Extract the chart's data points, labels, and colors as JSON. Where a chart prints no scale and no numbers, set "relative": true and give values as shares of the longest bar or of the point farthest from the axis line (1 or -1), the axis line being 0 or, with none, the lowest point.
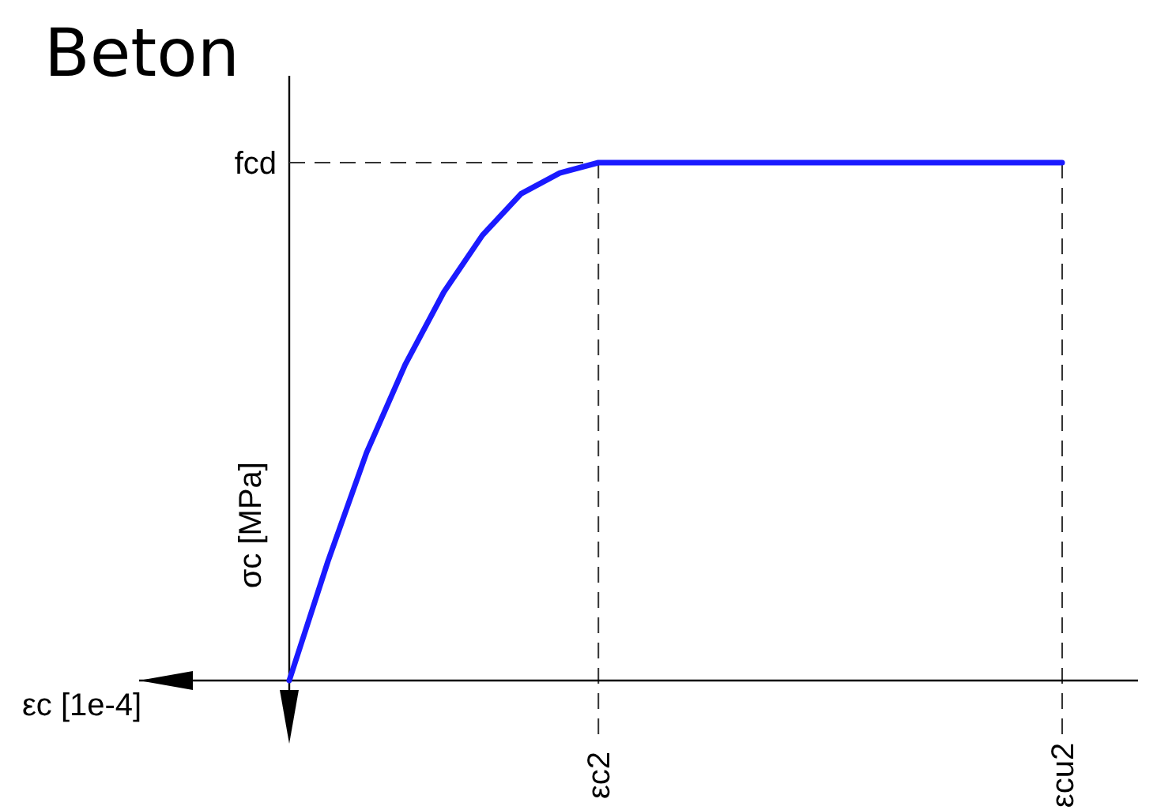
{
  "chart_data": {
    "type": "line",
    "title": "Beton",
    "xlabel": "εc [1e-4]",
    "ylabel": "σc [MPa]",
    "relative": true,
    "categories": [
      null,
      null,
      null,
      null,
      null,
      null,
      null,
      null,
      "εc2",
      null,
      null,
      null,
      null,
      null,
      null,
      null,
      null,
      null,
      null,
      null,
      "εcu2"
    ],
    "series": [
      {
        "color": "#1a1aff",
        "values": [
          0,
          0.23,
          0.44,
          0.61,
          0.75,
          0.86,
          0.94,
          0.98,
          1,
          1,
          1,
          1,
          1,
          1,
          1,
          1,
          1,
          1,
          1,
          1,
          1
        ]
      }
    ],
    "ref_lines": [
      {
        "axis": "y",
        "value": 1,
        "label": "fcd",
        "line_style": "dashed",
        "color": "#333333"
      }
    ],
    "grid": "x",
    "line_style": "solid"
  }
}
